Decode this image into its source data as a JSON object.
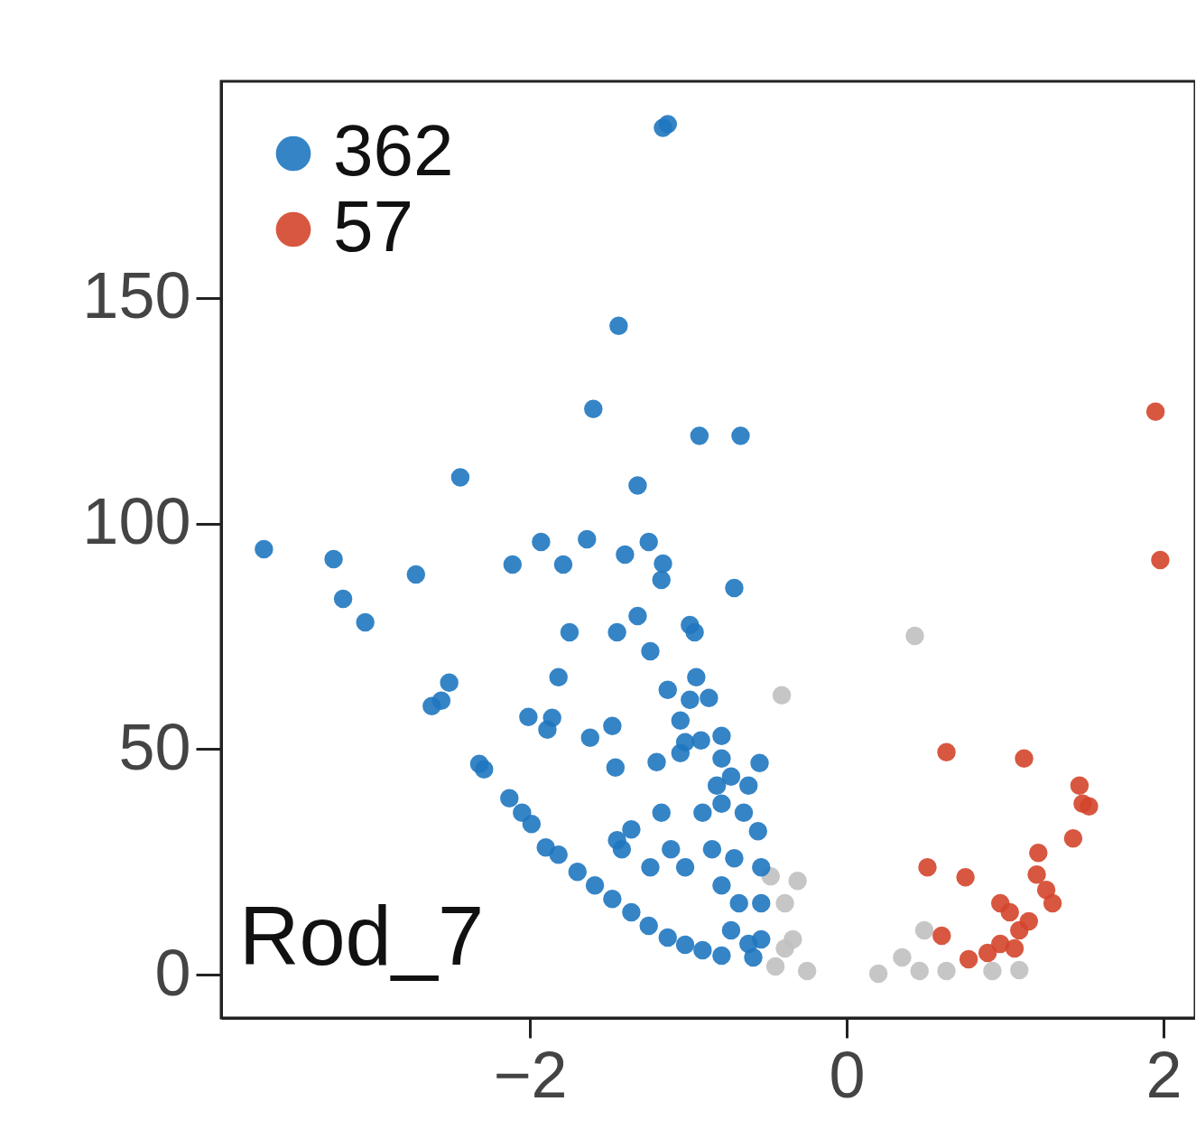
{
  "chart_data": {
    "type": "scatter",
    "annotations": [
      "Rod_7"
    ],
    "xlim": [
      -3.95,
      2.2
    ],
    "ylim": [
      -9.6,
      198
    ],
    "xticks": [
      -2,
      0,
      2
    ],
    "yticks": [
      0,
      50,
      100,
      150
    ],
    "grid": false,
    "legend": "top left",
    "marker": "circle",
    "series": [
      {
        "color": "#c0c0c0",
        "x": [
          0.43,
          -0.41,
          -0.48,
          -0.31,
          -0.39,
          -0.34,
          -0.25,
          -0.45,
          0.49,
          0.2,
          0.35,
          0.63,
          0.92,
          1.09,
          0.46,
          -0.39
        ],
        "values": [
          75.1,
          61.9,
          21.8,
          20.8,
          15.8,
          7.8,
          0.8,
          1.8,
          9.8,
          0.2,
          3.8,
          0.8,
          0.8,
          1.0,
          0.8,
          5.8
        ]
      },
      {
        "name": "362",
        "color": "#1f77c0",
        "x": [
          -1.13,
          -1.16,
          -1.44,
          -1.6,
          -0.93,
          -0.67,
          -2.44,
          -1.32,
          -3.68,
          -3.24,
          -2.72,
          -2.11,
          -1.93,
          -1.79,
          -1.64,
          -1.4,
          -1.25,
          -1.16,
          -1.17,
          -0.71,
          -3.18,
          -3.04,
          -1.75,
          -1.45,
          -1.32,
          -0.99,
          -0.96,
          -1.24,
          -1.82,
          -2.51,
          -2.62,
          -2.56,
          -1.13,
          -0.95,
          -0.99,
          -0.87,
          -2.01,
          -1.86,
          -1.89,
          -1.62,
          -1.48,
          -1.05,
          -1.02,
          -0.92,
          -0.79,
          -1.46,
          -1.2,
          -1.05,
          -0.55,
          -2.32,
          -2.29,
          -0.79,
          -2.13,
          -2.05,
          -1.99,
          -1.9,
          -1.82,
          -1.7,
          -1.59,
          -1.48,
          -1.36,
          -1.25,
          -1.13,
          -1.02,
          -0.91,
          -0.79,
          -1.17,
          -1.36,
          -1.45,
          -1.42,
          -1.11,
          -1.24,
          -1.02,
          -0.85,
          -0.91,
          -0.79,
          -0.62,
          -0.56,
          -0.54,
          -0.54,
          -0.54,
          -0.59,
          -0.68,
          -0.73,
          -0.79,
          -0.71,
          -0.65,
          -0.73,
          -0.82,
          -0.62
        ],
        "values": [
          188.5,
          187.7,
          143.8,
          125.4,
          119.4,
          119.4,
          110.2,
          108.4,
          94.3,
          92.1,
          88.7,
          90.9,
          95.9,
          90.9,
          96.5,
          93.1,
          95.9,
          91.1,
          87.5,
          85.7,
          83.3,
          78.1,
          75.9,
          75.9,
          79.5,
          77.5,
          75.9,
          71.7,
          65.9,
          64.7,
          59.5,
          60.7,
          63.1,
          65.9,
          60.9,
          61.3,
          57.1,
          56.9,
          54.3,
          52.5,
          55.1,
          56.3,
          51.5,
          51.9,
          52.9,
          45.9,
          47.1,
          49.1,
          46.9,
          46.7,
          45.5,
          47.9,
          39.1,
          35.9,
          33.4,
          28.2,
          26.6,
          22.8,
          19.8,
          16.8,
          13.8,
          10.8,
          8.2,
          6.6,
          5.4,
          4.2,
          35.9,
          32.2,
          29.8,
          27.8,
          27.8,
          23.8,
          23.8,
          27.8,
          35.9,
          37.9,
          41.9,
          31.8,
          23.8,
          15.8,
          7.8,
          3.8,
          15.8,
          9.8,
          19.8,
          25.8,
          35.9,
          43.9,
          41.9,
          6.8
        ]
      },
      {
        "name": "57",
        "color": "#d4452b",
        "x": [
          1.95,
          1.98,
          0.63,
          1.12,
          1.47,
          1.49,
          1.53,
          1.43,
          1.21,
          0.51,
          0.75,
          1.2,
          1.26,
          1.3,
          0.97,
          0.6,
          1.03,
          1.09,
          0.97,
          0.89,
          0.77,
          1.15,
          1.06
        ],
        "values": [
          124.8,
          91.9,
          49.3,
          47.9,
          41.9,
          37.9,
          37.3,
          30.2,
          27.0,
          23.8,
          21.6,
          22.2,
          18.8,
          15.8,
          15.8,
          8.6,
          13.8,
          9.8,
          6.8,
          4.8,
          3.4,
          11.8,
          5.8
        ]
      }
    ]
  }
}
